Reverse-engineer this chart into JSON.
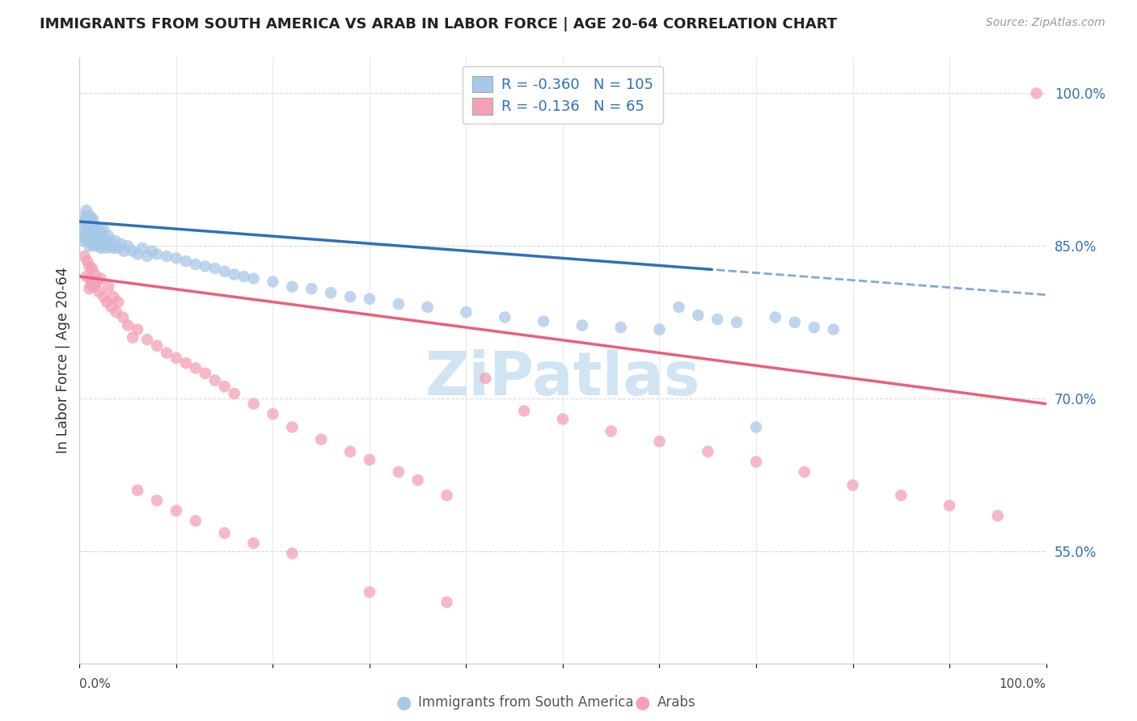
{
  "title": "IMMIGRANTS FROM SOUTH AMERICA VS ARAB IN LABOR FORCE | AGE 20-64 CORRELATION CHART",
  "source": "Source: ZipAtlas.com",
  "ylabel": "In Labor Force | Age 20-64",
  "legend_label1": "Immigrants from South America",
  "legend_label2": "Arabs",
  "r1": -0.36,
  "n1": 105,
  "r2": -0.136,
  "n2": 65,
  "xlim": [
    0.0,
    1.0
  ],
  "ylim": [
    0.44,
    1.035
  ],
  "right_yticks": [
    0.55,
    0.7,
    0.85,
    1.0
  ],
  "right_ytick_labels": [
    "55.0%",
    "70.0%",
    "85.0%",
    "100.0%"
  ],
  "color_blue": "#a8c8e8",
  "color_pink": "#f4a0b5",
  "line_blue": "#3070b8",
  "line_pink": "#e8607a",
  "background": "#ffffff",
  "grid_color": "#d8d8d8",
  "watermark_text": "ZiPatlas",
  "watermark_color": "#d0e4f4",
  "blue_line_intercept": 0.874,
  "blue_line_slope": -0.072,
  "blue_line_solid_end": 0.65,
  "pink_line_intercept": 0.82,
  "pink_line_slope": -0.125,
  "blue_x": [
    0.003,
    0.004,
    0.005,
    0.005,
    0.006,
    0.006,
    0.006,
    0.007,
    0.007,
    0.007,
    0.008,
    0.008,
    0.008,
    0.009,
    0.009,
    0.009,
    0.01,
    0.01,
    0.01,
    0.01,
    0.011,
    0.011,
    0.011,
    0.012,
    0.012,
    0.012,
    0.013,
    0.013,
    0.013,
    0.014,
    0.014,
    0.014,
    0.015,
    0.015,
    0.015,
    0.016,
    0.016,
    0.017,
    0.017,
    0.018,
    0.018,
    0.019,
    0.019,
    0.02,
    0.02,
    0.021,
    0.021,
    0.022,
    0.022,
    0.023,
    0.024,
    0.025,
    0.025,
    0.026,
    0.027,
    0.028,
    0.029,
    0.03,
    0.031,
    0.033,
    0.035,
    0.037,
    0.04,
    0.043,
    0.046,
    0.05,
    0.055,
    0.06,
    0.065,
    0.07,
    0.075,
    0.08,
    0.09,
    0.1,
    0.11,
    0.12,
    0.13,
    0.14,
    0.15,
    0.16,
    0.17,
    0.18,
    0.2,
    0.22,
    0.24,
    0.26,
    0.28,
    0.3,
    0.33,
    0.36,
    0.4,
    0.44,
    0.48,
    0.52,
    0.56,
    0.6,
    0.62,
    0.64,
    0.66,
    0.68,
    0.7,
    0.72,
    0.74,
    0.76,
    0.78
  ],
  "blue_y": [
    0.855,
    0.862,
    0.87,
    0.858,
    0.875,
    0.865,
    0.88,
    0.86,
    0.872,
    0.885,
    0.858,
    0.868,
    0.878,
    0.855,
    0.865,
    0.875,
    0.85,
    0.86,
    0.87,
    0.88,
    0.855,
    0.865,
    0.875,
    0.858,
    0.868,
    0.878,
    0.852,
    0.862,
    0.872,
    0.856,
    0.866,
    0.876,
    0.85,
    0.86,
    0.87,
    0.855,
    0.865,
    0.858,
    0.868,
    0.852,
    0.862,
    0.856,
    0.866,
    0.85,
    0.86,
    0.855,
    0.865,
    0.848,
    0.858,
    0.852,
    0.86,
    0.856,
    0.866,
    0.85,
    0.855,
    0.848,
    0.852,
    0.86,
    0.855,
    0.85,
    0.848,
    0.855,
    0.848,
    0.852,
    0.845,
    0.85,
    0.845,
    0.842,
    0.848,
    0.84,
    0.845,
    0.842,
    0.84,
    0.838,
    0.835,
    0.832,
    0.83,
    0.828,
    0.825,
    0.822,
    0.82,
    0.818,
    0.815,
    0.81,
    0.808,
    0.804,
    0.8,
    0.798,
    0.793,
    0.79,
    0.785,
    0.78,
    0.776,
    0.772,
    0.77,
    0.768,
    0.79,
    0.782,
    0.778,
    0.775,
    0.672,
    0.78,
    0.775,
    0.77,
    0.768
  ],
  "pink_x": [
    0.005,
    0.007,
    0.008,
    0.01,
    0.01,
    0.011,
    0.012,
    0.013,
    0.015,
    0.016,
    0.018,
    0.02,
    0.022,
    0.025,
    0.028,
    0.03,
    0.033,
    0.035,
    0.038,
    0.04,
    0.045,
    0.05,
    0.055,
    0.06,
    0.07,
    0.08,
    0.09,
    0.1,
    0.11,
    0.12,
    0.13,
    0.14,
    0.15,
    0.16,
    0.18,
    0.2,
    0.22,
    0.25,
    0.28,
    0.3,
    0.33,
    0.35,
    0.38,
    0.42,
    0.46,
    0.5,
    0.55,
    0.6,
    0.65,
    0.7,
    0.75,
    0.8,
    0.85,
    0.9,
    0.95,
    0.99,
    0.06,
    0.08,
    0.1,
    0.12,
    0.15,
    0.18,
    0.22,
    0.3,
    0.38
  ],
  "pink_y": [
    0.84,
    0.82,
    0.835,
    0.808,
    0.83,
    0.818,
    0.812,
    0.828,
    0.81,
    0.822,
    0.815,
    0.805,
    0.818,
    0.8,
    0.795,
    0.81,
    0.79,
    0.8,
    0.785,
    0.795,
    0.78,
    0.772,
    0.76,
    0.768,
    0.758,
    0.752,
    0.745,
    0.74,
    0.735,
    0.73,
    0.725,
    0.718,
    0.712,
    0.705,
    0.695,
    0.685,
    0.672,
    0.66,
    0.648,
    0.64,
    0.628,
    0.62,
    0.605,
    0.72,
    0.688,
    0.68,
    0.668,
    0.658,
    0.648,
    0.638,
    0.628,
    0.615,
    0.605,
    0.595,
    0.585,
    1.0,
    0.61,
    0.6,
    0.59,
    0.58,
    0.568,
    0.558,
    0.548,
    0.51,
    0.5
  ]
}
